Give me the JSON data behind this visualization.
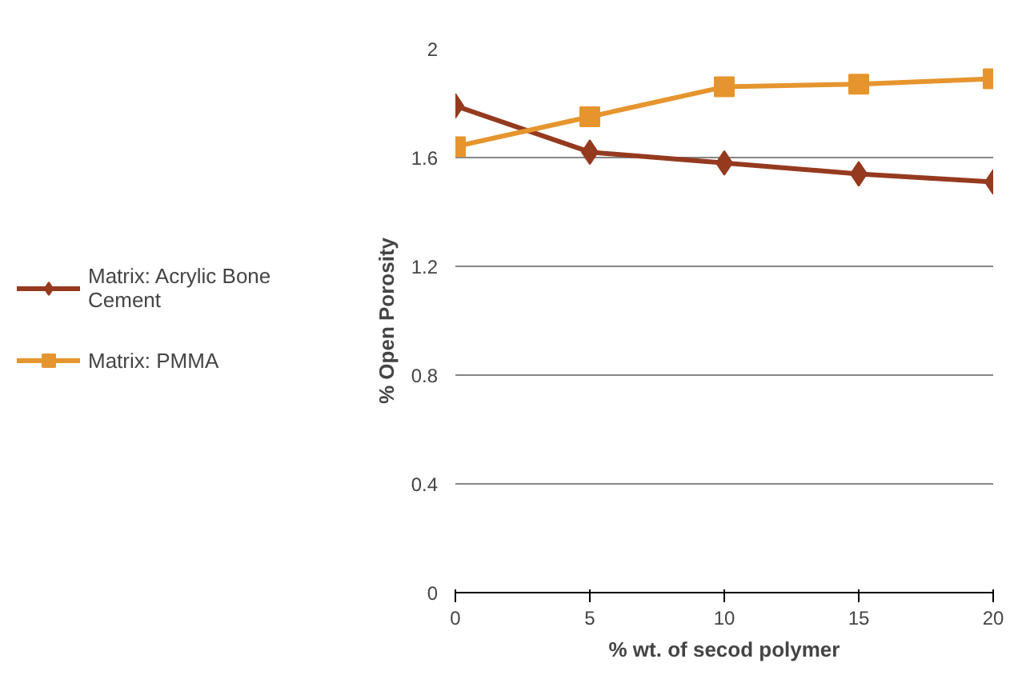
{
  "chart_data": {
    "type": "line",
    "xlabel": "% wt. of secod polymer",
    "ylabel": "% Open Porosity",
    "x": [
      0,
      5,
      10,
      15,
      20
    ],
    "xlim": [
      0,
      20
    ],
    "xticks": [
      0,
      5,
      10,
      15,
      20
    ],
    "ylim": [
      0,
      2
    ],
    "yticks": [
      0,
      0.4,
      0.8,
      1.2,
      1.6,
      2
    ],
    "grid": "y",
    "legend": "left",
    "line_style": "solid",
    "series": [
      {
        "name": "Matrix: Acrylic Bone Cement",
        "color": "#953a1f",
        "marker": "diamond",
        "values": [
          1.79,
          1.62,
          1.58,
          1.54,
          1.51
        ]
      },
      {
        "name": "Matrix: PMMA",
        "color": "#e6952e",
        "marker": "square",
        "values": [
          1.64,
          1.75,
          1.86,
          1.87,
          1.89
        ]
      }
    ]
  }
}
